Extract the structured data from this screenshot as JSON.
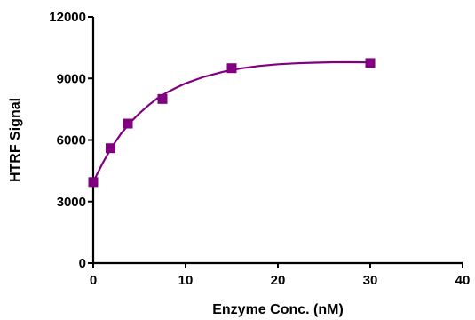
{
  "chart_data": {
    "type": "scatter",
    "title": "",
    "xlabel": "Enzyme Conc. (nM)",
    "ylabel": "HTRF Signal",
    "xlim": [
      0,
      40
    ],
    "ylim": [
      0,
      12000
    ],
    "xticks": [
      0,
      10,
      20,
      30,
      40
    ],
    "yticks": [
      0,
      3000,
      6000,
      9000,
      12000
    ],
    "grid": false,
    "legend": "none",
    "series": [
      {
        "points": [
          {
            "x": 0,
            "y": 3950
          },
          {
            "x": 1.875,
            "y": 5600
          },
          {
            "x": 3.75,
            "y": 6800
          },
          {
            "x": 7.5,
            "y": 8000
          },
          {
            "x": 15,
            "y": 9500
          },
          {
            "x": 30,
            "y": 9750
          }
        ],
        "marker": "square",
        "color": "#800080",
        "fit_curve": [
          [
            0,
            3950
          ],
          [
            1,
            4850
          ],
          [
            2,
            5650
          ],
          [
            3,
            6300
          ],
          [
            4,
            6850
          ],
          [
            5,
            7300
          ],
          [
            6,
            7700
          ],
          [
            7,
            8050
          ],
          [
            8,
            8320
          ],
          [
            9,
            8550
          ],
          [
            10,
            8760
          ],
          [
            12,
            9080
          ],
          [
            14,
            9320
          ],
          [
            16,
            9490
          ],
          [
            18,
            9610
          ],
          [
            20,
            9690
          ],
          [
            22,
            9740
          ],
          [
            24,
            9770
          ],
          [
            26,
            9790
          ],
          [
            28,
            9790
          ],
          [
            30,
            9780
          ]
        ]
      }
    ]
  }
}
